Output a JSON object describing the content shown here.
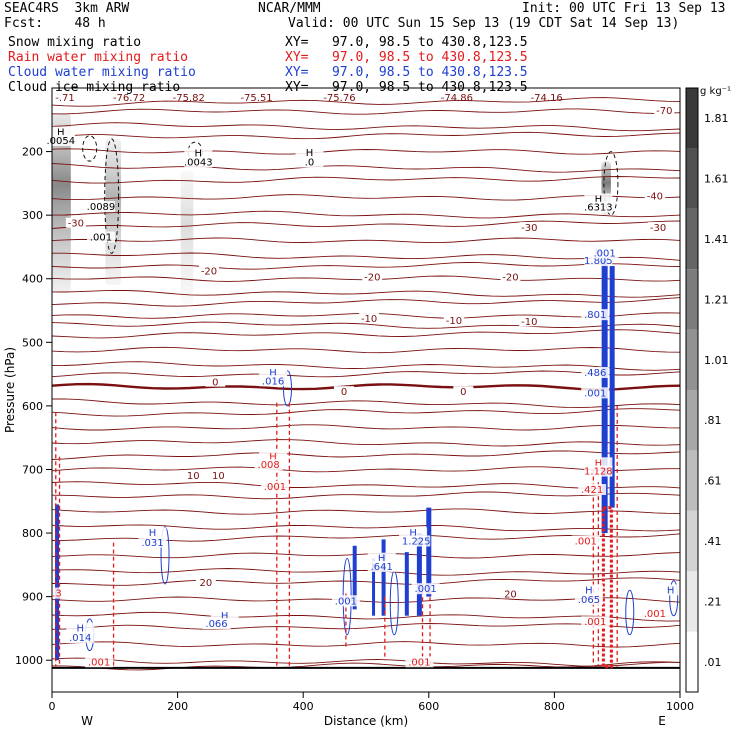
{
  "header": {
    "experiment": "SEAC4RS  3km ARW",
    "forecast": "Fcst:    48 h",
    "center": "NCAR/MMM",
    "init": "Init: 00 UTC Fri 13 Sep 13",
    "valid": "Valid: 00 UTC Sun 15 Sep 13 (19 CDT Sat 14 Sep 13)",
    "fields": [
      {
        "name": "Snow mixing ratio",
        "xy": "XY=   97.0, 98.5 to 430.8,123.5",
        "color": "#000000"
      },
      {
        "name": "Rain water mixing ratio",
        "xy": "XY=   97.0, 98.5 to 430.8,123.5",
        "color": "#e41a1c"
      },
      {
        "name": "Cloud water mixing ratio",
        "xy": "XY=   97.0, 98.5 to 430.8,123.5",
        "color": "#1f3fd0"
      },
      {
        "name": "Cloud ice mixing ratio",
        "xy": "XY=   97.0, 98.5 to 430.8,123.5",
        "color": "#000000"
      }
    ]
  },
  "chart_data": {
    "type": "contour",
    "xlabel": "Distance (km)",
    "ylabel": "Pressure (hPa)",
    "xlim": [
      0,
      1000
    ],
    "ylim": [
      1050,
      100
    ],
    "x_ticks": [
      0,
      200,
      400,
      600,
      800,
      1000
    ],
    "y_ticks": [
      200,
      300,
      400,
      500,
      600,
      700,
      800,
      900,
      1000
    ],
    "y_tick_labels": [
      "200",
      "300",
      "400",
      "500",
      "600",
      "700",
      "800",
      "900",
      "1000"
    ],
    "x_end_labels": {
      "left": "W",
      "right": "E"
    },
    "colorbar": {
      "unit": "g kg⁻¹",
      "levels": [
        ".01",
        ".21",
        ".41",
        ".61",
        ".81",
        "1.01",
        "1.21",
        "1.41",
        "1.61",
        "1.81"
      ]
    },
    "temperature_isotherms": [
      {
        "label": "-70",
        "p": 137
      },
      {
        "label": "-40",
        "p": 272
      },
      {
        "label": "-30",
        "p": 318
      },
      {
        "label": "-20",
        "p": 400
      },
      {
        "label": "-10",
        "p": 470
      },
      {
        "label": "0",
        "p": 570
      },
      {
        "label": "10",
        "p": 680
      },
      {
        "label": "20",
        "p": 880
      }
    ],
    "isotherm_labels": [
      {
        "text": "-30",
        "x": 38,
        "p": 315
      },
      {
        "text": "-20",
        "x": 250,
        "p": 390
      },
      {
        "text": "-20",
        "x": 510,
        "p": 400
      },
      {
        "text": "-20",
        "x": 730,
        "p": 400
      },
      {
        "text": "-30",
        "x": 760,
        "p": 322
      },
      {
        "text": "-30",
        "x": 965,
        "p": 322
      },
      {
        "text": "-40",
        "x": 960,
        "p": 272
      },
      {
        "text": "-70",
        "x": 975,
        "p": 138
      },
      {
        "text": "-10",
        "x": 505,
        "p": 465
      },
      {
        "text": "-10",
        "x": 640,
        "p": 468
      },
      {
        "text": "-10",
        "x": 760,
        "p": 470
      },
      {
        "text": "0",
        "x": 260,
        "p": 565
      },
      {
        "text": "0",
        "x": 465,
        "p": 580
      },
      {
        "text": "0",
        "x": 655,
        "p": 580
      },
      {
        "text": "10",
        "x": 225,
        "p": 712
      },
      {
        "text": "10",
        "x": 265,
        "p": 712
      },
      {
        "text": "20",
        "x": 245,
        "p": 880
      },
      {
        "text": "20",
        "x": 730,
        "p": 898
      }
    ],
    "top_labels": [
      {
        "text": "-.71",
        "x": 8
      },
      {
        "text": "-76.72",
        "x": 110
      },
      {
        "text": "-75.82",
        "x": 205
      },
      {
        "text": "-75.51",
        "x": 313
      },
      {
        "text": "-75.76",
        "x": 445
      },
      {
        "text": "-74.86",
        "x": 632
      },
      {
        "text": "-74.16",
        "x": 775
      }
    ],
    "extrema_labels": [
      {
        "text": "H",
        "x": 14,
        "p": 175,
        "color": "#000000"
      },
      {
        "text": ".0054",
        "x": 14,
        "p": 188,
        "color": "#000000"
      },
      {
        "text": ".0089",
        "x": 78,
        "p": 292,
        "color": "#000000"
      },
      {
        "text": ".001",
        "x": 78,
        "p": 340,
        "color": "#000000"
      },
      {
        "text": "H",
        "x": 233,
        "p": 208,
        "color": "#000000"
      },
      {
        "text": ".0043",
        "x": 233,
        "p": 222,
        "color": "#000000"
      },
      {
        "text": "H",
        "x": 410,
        "p": 207,
        "color": "#000000"
      },
      {
        "text": ".0",
        "x": 410,
        "p": 222,
        "color": "#000000"
      },
      {
        "text": "H",
        "x": 870,
        "p": 280,
        "color": "#000000"
      },
      {
        "text": ".6313",
        "x": 870,
        "p": 293,
        "color": "#000000"
      },
      {
        "text": "H",
        "x": 352,
        "p": 553,
        "color": "#1f3fd0"
      },
      {
        "text": ".016",
        "x": 352,
        "p": 566,
        "color": "#1f3fd0"
      },
      {
        "text": "H",
        "x": 870,
        "p": 364,
        "color": "#1f3fd0"
      },
      {
        "text": "1.805",
        "x": 870,
        "p": 377,
        "color": "#1f3fd0"
      },
      {
        "text": ".001",
        "x": 880,
        "p": 365,
        "color": "#1f3fd0"
      },
      {
        "text": ".801",
        "x": 865,
        "p": 462,
        "color": "#1f3fd0"
      },
      {
        "text": ".486",
        "x": 865,
        "p": 553,
        "color": "#1f3fd0"
      },
      {
        "text": ".001",
        "x": 865,
        "p": 585,
        "color": "#1f3fd0"
      },
      {
        "text": "H",
        "x": 160,
        "p": 805,
        "color": "#1f3fd0"
      },
      {
        "text": ".031",
        "x": 160,
        "p": 820,
        "color": "#1f3fd0"
      },
      {
        "text": "H",
        "x": 525,
        "p": 845,
        "color": "#1f3fd0"
      },
      {
        "text": ".641",
        "x": 525,
        "p": 858,
        "color": "#1f3fd0"
      },
      {
        "text": "H",
        "x": 575,
        "p": 805,
        "color": "#1f3fd0"
      },
      {
        "text": "1.225",
        "x": 580,
        "p": 818,
        "color": "#1f3fd0"
      },
      {
        "text": ".001",
        "x": 468,
        "p": 912,
        "color": "#1f3fd0"
      },
      {
        "text": ".001",
        "x": 595,
        "p": 893,
        "color": "#1f3fd0"
      },
      {
        "text": "H",
        "x": 855,
        "p": 895,
        "color": "#1f3fd0"
      },
      {
        "text": ".065",
        "x": 855,
        "p": 910,
        "color": "#1f3fd0"
      },
      {
        "text": "H",
        "x": 45,
        "p": 955,
        "color": "#1f3fd0"
      },
      {
        "text": ".014",
        "x": 45,
        "p": 970,
        "color": "#1f3fd0"
      },
      {
        "text": "H",
        "x": 275,
        "p": 935,
        "color": "#1f3fd0"
      },
      {
        "text": ".066",
        "x": 262,
        "p": 948,
        "color": "#1f3fd0"
      },
      {
        "text": "H",
        "x": 985,
        "p": 895,
        "color": "#1f3fd0"
      },
      {
        "text": "H",
        "x": 352,
        "p": 685,
        "color": "#e41a1c"
      },
      {
        "text": ".008",
        "x": 345,
        "p": 698,
        "color": "#e41a1c"
      },
      {
        "text": ".001",
        "x": 355,
        "p": 732,
        "color": "#e41a1c"
      },
      {
        "text": "H",
        "x": 870,
        "p": 695,
        "color": "#e41a1c"
      },
      {
        "text": "1.128",
        "x": 870,
        "p": 708,
        "color": "#e41a1c"
      },
      {
        "text": ".421",
        "x": 860,
        "p": 737,
        "color": "#e41a1c"
      },
      {
        "text": ".001",
        "x": 850,
        "p": 818,
        "color": "#e41a1c"
      },
      {
        "text": ".001",
        "x": 865,
        "p": 945,
        "color": "#e41a1c"
      },
      {
        "text": ".001",
        "x": 585,
        "p": 1008,
        "color": "#e41a1c"
      },
      {
        "text": ".001",
        "x": 75,
        "p": 1008,
        "color": "#e41a1c"
      },
      {
        "text": ".3",
        "x": 8,
        "p": 900,
        "color": "#e41a1c"
      },
      {
        "text": ".001",
        "x": 960,
        "p": 932,
        "color": "#e41a1c"
      }
    ]
  }
}
